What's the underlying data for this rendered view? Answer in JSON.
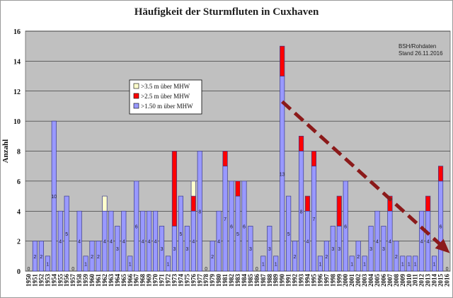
{
  "chart_data": {
    "type": "bar",
    "title": "Häufigkeit der Sturmfluten  in Cuxhaven",
    "ylabel": "Anzahl",
    "ylim": [
      0,
      16
    ],
    "yticks": [
      0,
      2,
      4,
      6,
      8,
      10,
      12,
      14,
      16
    ],
    "grid": true,
    "stacked": true,
    "source_note": [
      "BSH/Rohdaten",
      "Stand 26.11.2016"
    ],
    "legend_position": "upper-left",
    "categories": [
      "1950",
      "1951",
      "1952",
      "1953",
      "1954",
      "1955",
      "1956",
      "1957",
      "1958",
      "1959",
      "1960",
      "1961",
      "1962",
      "1963",
      "1964",
      "1965",
      "1966",
      "1967",
      "1968",
      "1969",
      "1970",
      "1971",
      "1972",
      "1973",
      "1974",
      "1975",
      "1976",
      "1977",
      "1978",
      "1979",
      "1980",
      "1981",
      "1982",
      "1983",
      "1984",
      "1985",
      "1986",
      "1987",
      "1988",
      "1989",
      "1990",
      "1991",
      "1992",
      "1993",
      "1994",
      "1995",
      "1996",
      "1997",
      "1998",
      "1999",
      "2000",
      "2001",
      "2002",
      "2003",
      "2004",
      "2005",
      "2006",
      "2007",
      "2008",
      "2009",
      "2010",
      "2011",
      "2012",
      "2013",
      "2014",
      "2015",
      "2016"
    ],
    "series": [
      {
        "name": ">1.50 m über MHW",
        "color": "#9999ff",
        "values": [
          0,
          2,
          2,
          1,
          10,
          4,
          5,
          0,
          4,
          1,
          2,
          2,
          4,
          4,
          3,
          4,
          1,
          6,
          4,
          4,
          4,
          3,
          1,
          3,
          5,
          3,
          4,
          8,
          0,
          2,
          4,
          7,
          6,
          5,
          6,
          3,
          0,
          1,
          3,
          1,
          13,
          5,
          2,
          8,
          4,
          7,
          1,
          2,
          3,
          3,
          6,
          1,
          2,
          1,
          3,
          4,
          3,
          4,
          2,
          1,
          1,
          1,
          4,
          4,
          1,
          6,
          0
        ]
      },
      {
        "name": ">2.5 m über MHW",
        "color": "#ff0000",
        "values": [
          0,
          0,
          0,
          0,
          0,
          0,
          0,
          0,
          0,
          0,
          0,
          0,
          0,
          0,
          0,
          0,
          0,
          0,
          0,
          0,
          0,
          0,
          0,
          5,
          0,
          0,
          1,
          0,
          0,
          0,
          0,
          1,
          0,
          1,
          0,
          0,
          0,
          0,
          0,
          0,
          2,
          0,
          0,
          1,
          1,
          1,
          0,
          0,
          0,
          2,
          0,
          0,
          0,
          0,
          0,
          0,
          0,
          1,
          0,
          0,
          0,
          0,
          0,
          1,
          0,
          1,
          0
        ]
      },
      {
        "name": ">3.5 m über MHW",
        "color": "#ffffcc",
        "values": [
          0,
          0,
          0,
          0,
          0,
          0,
          0,
          0,
          0,
          0,
          0,
          0,
          1,
          0,
          0,
          0,
          0,
          0,
          0,
          0,
          0,
          0,
          0,
          0,
          0,
          0,
          1,
          0,
          0,
          0,
          0,
          0,
          0,
          0,
          0,
          0,
          0,
          0,
          0,
          0,
          0,
          0,
          0,
          0,
          0,
          0,
          0,
          0,
          0,
          0,
          0,
          0,
          0,
          0,
          0,
          0,
          0,
          0,
          0,
          0,
          0,
          0,
          0,
          0,
          0,
          0,
          0
        ]
      }
    ],
    "bar_labels": [
      "0",
      "2",
      "2",
      "1",
      "10",
      "4",
      "5",
      "0",
      "4",
      "1",
      "2",
      "2",
      "4",
      "4",
      "3",
      "4",
      "1",
      "6",
      "4",
      "4",
      "4",
      "3",
      "1",
      "3",
      "5",
      "3",
      "4",
      "8",
      "0",
      "2",
      "4",
      "7",
      "6",
      "5",
      "6",
      "3",
      "0",
      "1",
      "3",
      "1",
      "13",
      "5",
      "2",
      "8",
      "4",
      "7",
      "1",
      "2",
      "3",
      "3",
      "6",
      "1",
      "2",
      "1",
      "3",
      "4",
      "3",
      "4",
      "2",
      "1",
      "1",
      "1",
      "4",
      "4",
      "1",
      "6",
      "0"
    ],
    "trend_arrow": {
      "from": [
        "1990",
        11.3
      ],
      "to": [
        "2016",
        1.2
      ],
      "color": "#8b1a1a",
      "style": "dashed"
    }
  }
}
